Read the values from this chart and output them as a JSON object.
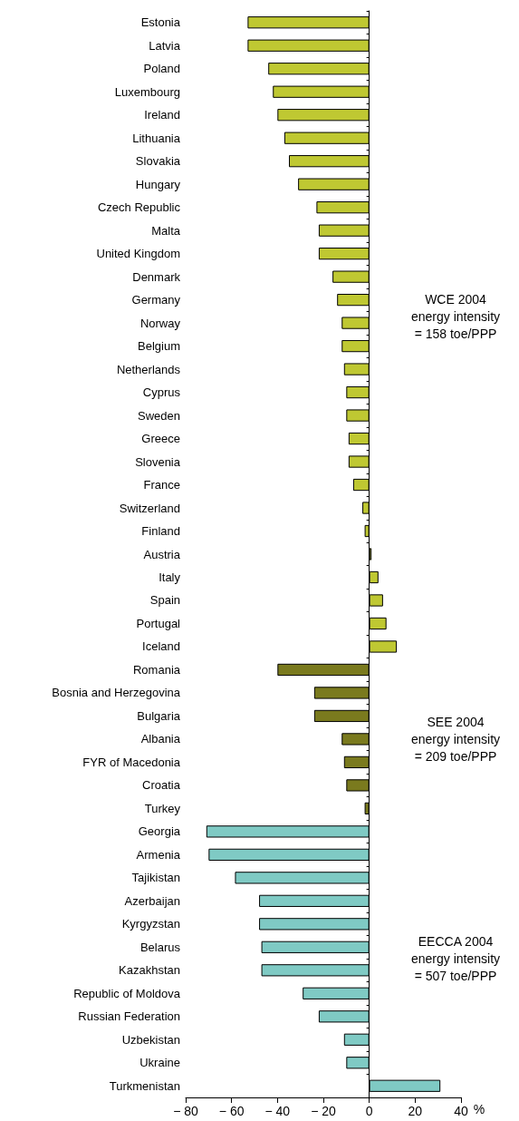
{
  "chart_data": {
    "type": "bar",
    "orientation": "horizontal",
    "xlabel": "%",
    "categories": [
      "Estonia",
      "Latvia",
      "Poland",
      "Luxembourg",
      "Ireland",
      "Lithuania",
      "Slovakia",
      "Hungary",
      "Czech Republic",
      "Malta",
      "United Kingdom",
      "Denmark",
      "Germany",
      "Norway",
      "Belgium",
      "Netherlands",
      "Cyprus",
      "Sweden",
      "Greece",
      "Slovenia",
      "France",
      "Switzerland",
      "Finland",
      "Austria",
      "Italy",
      "Spain",
      "Portugal",
      "Iceland",
      "Romania",
      "Bosnia and Herzegovina",
      "Bulgaria",
      "Albania",
      "FYR of Macedonia",
      "Croatia",
      "Turkey",
      "Georgia",
      "Armenia",
      "Tajikistan",
      "Azerbaijan",
      "Kyrgyzstan",
      "Belarus",
      "Kazakhstan",
      "Republic of Moldova",
      "Russian Federation",
      "Uzbekistan",
      "Ukraine",
      "Turkmenistan"
    ],
    "values": [
      -53,
      -53,
      -44,
      -42,
      -40,
      -37,
      -35,
      -31,
      -23,
      -22,
      -22,
      -16,
      -14,
      -12,
      -12,
      -11,
      -10,
      -10,
      -9,
      -9,
      -7,
      -3,
      -2,
      1,
      4,
      6,
      7.5,
      12,
      -40,
      -24,
      -24,
      -12,
      -11,
      -10,
      -2,
      -71,
      -70,
      -58.5,
      -48,
      -48,
      -47,
      -47,
      -29,
      -22,
      -11,
      -10,
      31
    ],
    "colors": [
      "#bfc832",
      "#bfc832",
      "#bfc832",
      "#bfc832",
      "#bfc832",
      "#bfc832",
      "#bfc832",
      "#bfc832",
      "#bfc832",
      "#bfc832",
      "#bfc832",
      "#bfc832",
      "#bfc832",
      "#bfc832",
      "#bfc832",
      "#bfc832",
      "#bfc832",
      "#bfc832",
      "#bfc832",
      "#bfc832",
      "#bfc832",
      "#bfc832",
      "#bfc832",
      "#bfc832",
      "#bfc832",
      "#bfc832",
      "#bfc832",
      "#bfc832",
      "#7a7a1e",
      "#7a7a1e",
      "#7a7a1e",
      "#7a7a1e",
      "#7a7a1e",
      "#7a7a1e",
      "#7a7a1e",
      "#7fcac4",
      "#7fcac4",
      "#7fcac4",
      "#7fcac4",
      "#7fcac4",
      "#7fcac4",
      "#7fcac4",
      "#7fcac4",
      "#7fcac4",
      "#7fcac4",
      "#7fcac4",
      "#7fcac4"
    ],
    "xlim": [
      -80,
      40
    ],
    "xticks": [
      {
        "value": -80,
        "label": "− 80"
      },
      {
        "value": -60,
        "label": "− 60"
      },
      {
        "value": -40,
        "label": "− 40"
      },
      {
        "value": -20,
        "label": "− 20"
      },
      0,
      20,
      40
    ],
    "annotations": [
      "WCE 2004\nenergy intensity\n= 158 toe/PPP",
      "SEE 2004\nenergy intensity\n= 209 toe/PPP",
      "EECCA 2004\nenergy intensity\n= 507 toe/PPP"
    ]
  }
}
